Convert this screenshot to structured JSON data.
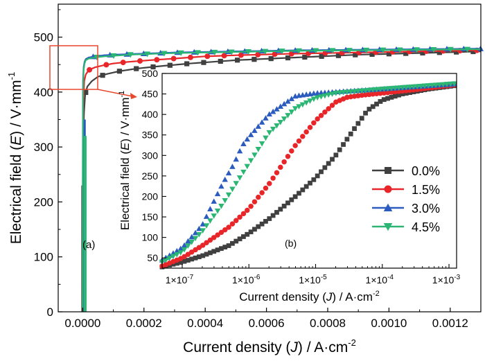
{
  "chart_data": [
    {
      "panel": "(a)",
      "type": "line",
      "xlabel_main": "Current density (",
      "xlabel_var": "J",
      "xlabel_tail": ") / A·cm",
      "xlabel_exp": "-2",
      "ylabel_main": "Electrical field (",
      "ylabel_var": "E",
      "ylabel_tail": ") / V·mm",
      "ylabel_exp": "-1",
      "xlim": [
        -8e-05,
        0.0013
      ],
      "ylim": [
        0,
        560
      ],
      "xticks": [
        0,
        0.0002,
        0.0004,
        0.0006,
        0.0008,
        0.001,
        0.0012
      ],
      "xtick_labels": [
        "0.0000",
        "0.0002",
        "0.0004",
        "0.0006",
        "0.0008",
        "0.0010",
        "0.0012"
      ],
      "yticks": [
        0,
        100,
        200,
        300,
        400,
        500
      ],
      "ytick_labels": [
        "0",
        "100",
        "200",
        "300",
        "400",
        "500"
      ],
      "grid": false,
      "series": [
        {
          "name": "0.0%",
          "color": "#404040",
          "marker": "square",
          "x": [
            0,
            5e-07,
            1e-06,
            2e-06,
            4e-06,
            8e-06,
            1.5e-05,
            3e-05,
            5e-05,
            8e-05,
            0.00012,
            0.00018,
            0.00025,
            0.00035,
            0.0005,
            0.0007,
            0.0009,
            0.0011,
            0.0013
          ],
          "y": [
            0,
            150,
            230,
            300,
            360,
            395,
            410,
            420,
            428,
            433,
            438,
            443,
            447,
            452,
            458,
            463,
            468,
            471,
            474
          ]
        },
        {
          "name": "1.5%",
          "color": "#e8262a",
          "marker": "circle",
          "x": [
            0,
            3e-07,
            8e-07,
            2e-06,
            5e-06,
            1e-05,
            2e-05,
            4e-05,
            7e-05,
            0.0001,
            0.00015,
            0.00022,
            0.0003,
            0.0004,
            0.0005,
            0.0007,
            0.0009,
            0.0011,
            0.0013
          ],
          "y": [
            0,
            200,
            300,
            380,
            420,
            432,
            440,
            445,
            449,
            452,
            455,
            458,
            461,
            465,
            467,
            470,
            472,
            474,
            476
          ]
        },
        {
          "name": "3.0%",
          "color": "#2b5bbf",
          "marker": "triangle-up",
          "x": [
            0,
            2e-07,
            5e-07,
            1e-06,
            3e-06,
            6e-06,
            1e-05,
            2e-05,
            4e-05,
            7e-05,
            0.0001,
            0.00015,
            0.0002,
            0.0003,
            0.0005,
            0.0007,
            0.0009,
            0.0011,
            0.0013
          ],
          "y": [
            0,
            250,
            350,
            420,
            445,
            455,
            460,
            463,
            465,
            467,
            468,
            469,
            470,
            472,
            474,
            476,
            477,
            478,
            479
          ]
        },
        {
          "name": "4.5%",
          "color": "#2bb673",
          "marker": "triangle-down",
          "x": [
            0,
            2e-07,
            5e-07,
            1e-06,
            3e-06,
            6e-06,
            1e-05,
            2e-05,
            4e-05,
            7e-05,
            0.0001,
            0.00015,
            0.0002,
            0.0003,
            0.0005,
            0.0007,
            0.0009,
            0.0011,
            0.0013
          ],
          "y": [
            0,
            200,
            320,
            400,
            440,
            452,
            458,
            461,
            463,
            465,
            466,
            468,
            469,
            471,
            473,
            475,
            476,
            477,
            478
          ]
        }
      ]
    },
    {
      "panel": "(b)",
      "type": "line",
      "xscale": "log",
      "xlabel_main": "Current density (",
      "xlabel_var": "J",
      "xlabel_tail": ") / A·cm",
      "xlabel_exp": "-2",
      "ylabel_main": "Electrical field (",
      "ylabel_var": "E",
      "ylabel_tail": ") / V·mm",
      "ylabel_exp": "-1",
      "xlim": [
        5e-08,
        0.0013
      ],
      "ylim": [
        25,
        500
      ],
      "xticks": [
        1e-07,
        1e-06,
        1e-05,
        0.0001,
        0.001
      ],
      "xtick_base": "1×10",
      "xtick_exps": [
        "-7",
        "-6",
        "-5",
        "-4",
        "-3"
      ],
      "yticks": [
        50,
        100,
        150,
        200,
        250,
        300,
        350,
        400,
        450,
        500
      ],
      "ytick_labels": [
        "50",
        "100",
        "150",
        "200",
        "250",
        "300",
        "350",
        "400",
        "450",
        "500"
      ],
      "legend_position": "right",
      "grid": false,
      "series": [
        {
          "name": "0.0%",
          "color": "#404040",
          "marker": "square",
          "x": [
            5e-08,
            1e-07,
            2e-07,
            5e-07,
            1e-06,
            2e-06,
            5e-06,
            1e-05,
            2e-05,
            4e-05,
            6e-05,
            0.0001,
            0.0002,
            0.0005,
            0.0012
          ],
          "y": [
            28,
            40,
            55,
            80,
            110,
            145,
            200,
            245,
            300,
            370,
            410,
            435,
            450,
            462,
            470
          ]
        },
        {
          "name": "1.5%",
          "color": "#e8262a",
          "marker": "circle",
          "x": [
            5e-08,
            1e-07,
            2e-07,
            5e-07,
            1e-06,
            2e-06,
            5e-06,
            1e-05,
            2e-05,
            3e-05,
            5e-05,
            0.0001,
            0.0003,
            0.0012
          ],
          "y": [
            30,
            50,
            80,
            125,
            170,
            230,
            325,
            385,
            430,
            442,
            447,
            452,
            460,
            472
          ]
        },
        {
          "name": "3.0%",
          "color": "#2b5bbf",
          "marker": "triangle-up",
          "x": [
            5e-08,
            1e-07,
            2e-07,
            4e-07,
            6e-07,
            8e-07,
            1e-06,
            2e-06,
            5e-06,
            1e-05,
            0.0001,
            0.0012
          ],
          "y": [
            45,
            75,
            130,
            230,
            280,
            325,
            345,
            400,
            445,
            452,
            462,
            474
          ]
        },
        {
          "name": "4.5%",
          "color": "#2bb673",
          "marker": "triangle-down",
          "x": [
            5e-08,
            1e-07,
            2e-07,
            4e-07,
            1e-06,
            2e-06,
            5e-06,
            1e-05,
            2e-05,
            0.0001,
            0.0012
          ],
          "y": [
            40,
            65,
            115,
            180,
            280,
            355,
            415,
            440,
            452,
            462,
            475
          ]
        }
      ]
    }
  ]
}
